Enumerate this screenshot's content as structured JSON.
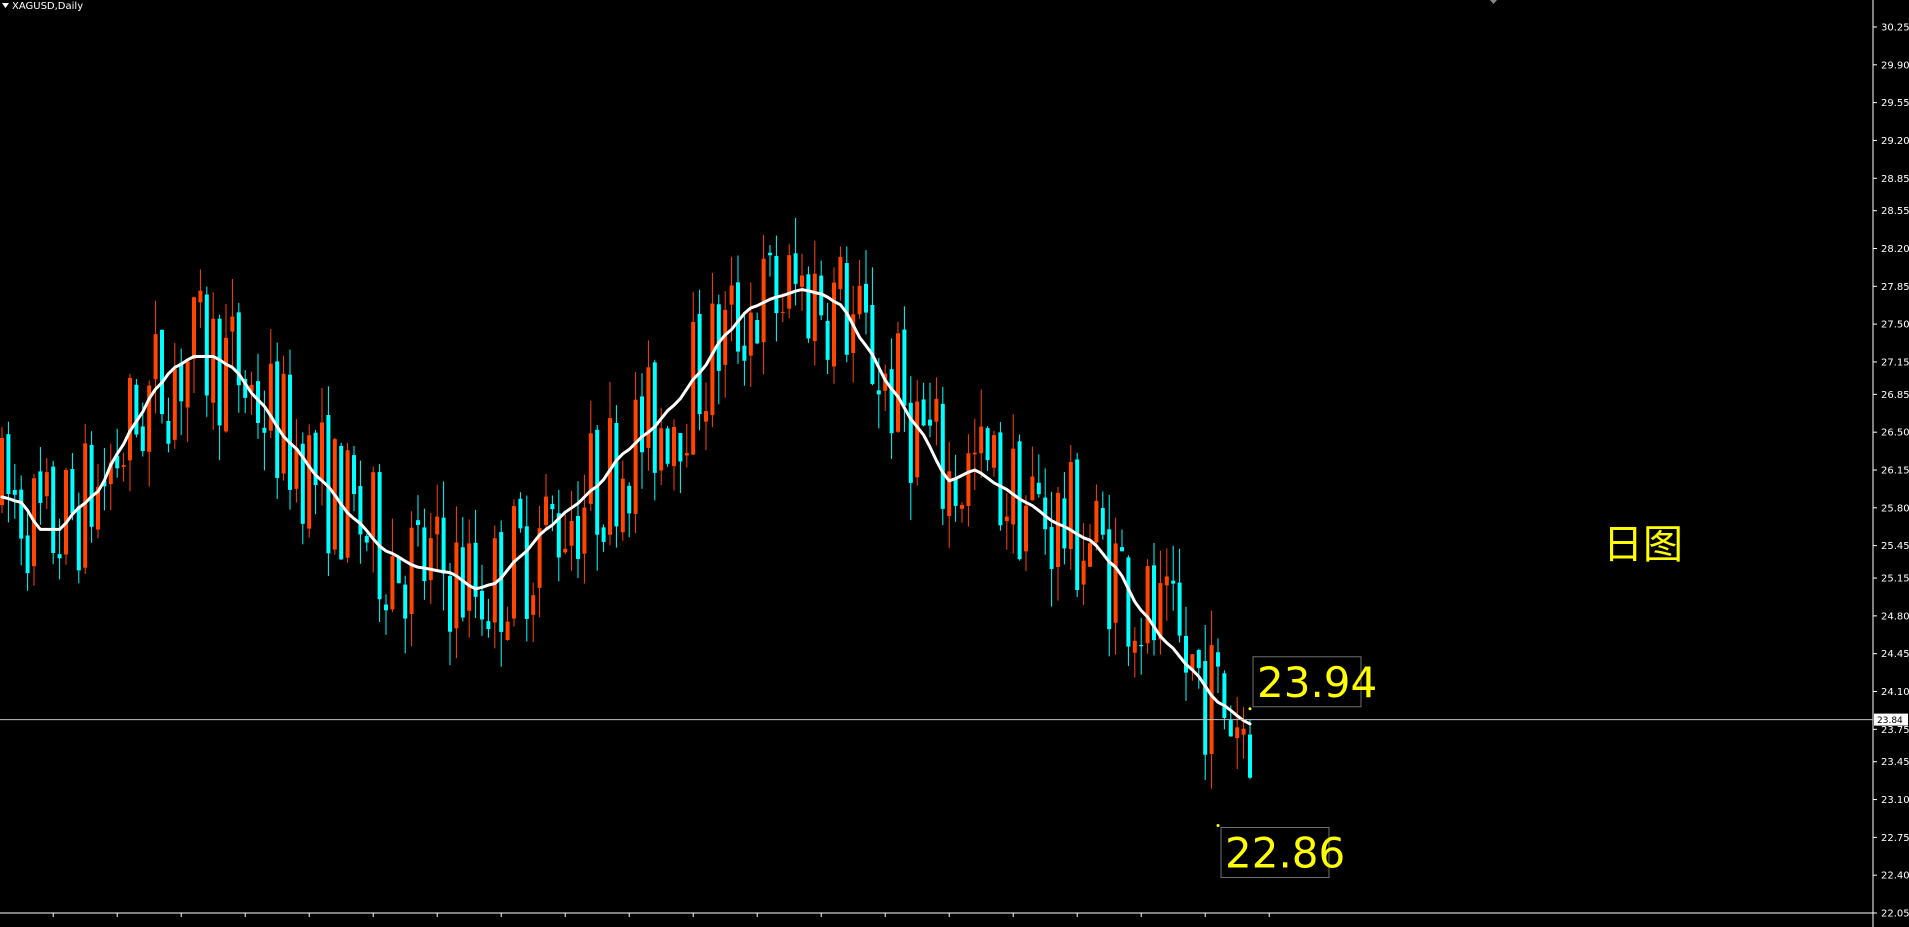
{
  "window": {
    "title": "XAGUSD,Daily"
  },
  "colors": {
    "background": "#000000",
    "bull": "#ff4500",
    "bear": "#00ffff",
    "ma": "#ffffff",
    "annotation": "#ffff00",
    "axis": "#ffffff"
  },
  "note": {
    "text": "日图"
  },
  "chart_data": {
    "type": "candlestick",
    "symbol": "XAGUSD",
    "timeframe": "Daily",
    "ylim": [
      22.05,
      30.25
    ],
    "yticks": [
      "30.25",
      "29.90",
      "29.55",
      "29.20",
      "28.85",
      "28.55",
      "28.20",
      "27.85",
      "27.50",
      "27.15",
      "26.85",
      "26.50",
      "26.15",
      "25.80",
      "25.45",
      "25.15",
      "24.80",
      "24.45",
      "24.10",
      "23.75",
      "23.45",
      "23.10",
      "22.75",
      "22.40",
      "22.05"
    ],
    "current_price": "23.84",
    "annotations": [
      {
        "label": "23.94",
        "value": 23.94,
        "index": 195
      },
      {
        "label": "22.86",
        "value": 22.86,
        "index": 190
      }
    ],
    "ma_anchors": [
      [
        0,
        25.9
      ],
      [
        3,
        25.85
      ],
      [
        6,
        25.6
      ],
      [
        9,
        25.6
      ],
      [
        12,
        25.8
      ],
      [
        15,
        25.95
      ],
      [
        18,
        26.3
      ],
      [
        21,
        26.6
      ],
      [
        24,
        26.9
      ],
      [
        27,
        27.1
      ],
      [
        30,
        27.2
      ],
      [
        33,
        27.2
      ],
      [
        36,
        27.1
      ],
      [
        40,
        26.8
      ],
      [
        45,
        26.4
      ],
      [
        50,
        26.05
      ],
      [
        55,
        25.7
      ],
      [
        60,
        25.4
      ],
      [
        65,
        25.25
      ],
      [
        70,
        25.2
      ],
      [
        74,
        25.05
      ],
      [
        77,
        25.1
      ],
      [
        81,
        25.35
      ],
      [
        85,
        25.6
      ],
      [
        89,
        25.8
      ],
      [
        93,
        26.0
      ],
      [
        97,
        26.3
      ],
      [
        101,
        26.5
      ],
      [
        105,
        26.75
      ],
      [
        109,
        27.05
      ],
      [
        113,
        27.4
      ],
      [
        117,
        27.65
      ],
      [
        121,
        27.75
      ],
      [
        125,
        27.82
      ],
      [
        128,
        27.78
      ],
      [
        131,
        27.68
      ],
      [
        135,
        27.3
      ],
      [
        139,
        26.9
      ],
      [
        143,
        26.55
      ],
      [
        148,
        26.05
      ],
      [
        152,
        26.15
      ],
      [
        156,
        26.0
      ],
      [
        160,
        25.85
      ],
      [
        165,
        25.65
      ],
      [
        170,
        25.5
      ],
      [
        174,
        25.25
      ],
      [
        178,
        24.85
      ],
      [
        182,
        24.55
      ],
      [
        186,
        24.3
      ],
      [
        190,
        24.0
      ],
      [
        195,
        23.8
      ]
    ]
  }
}
